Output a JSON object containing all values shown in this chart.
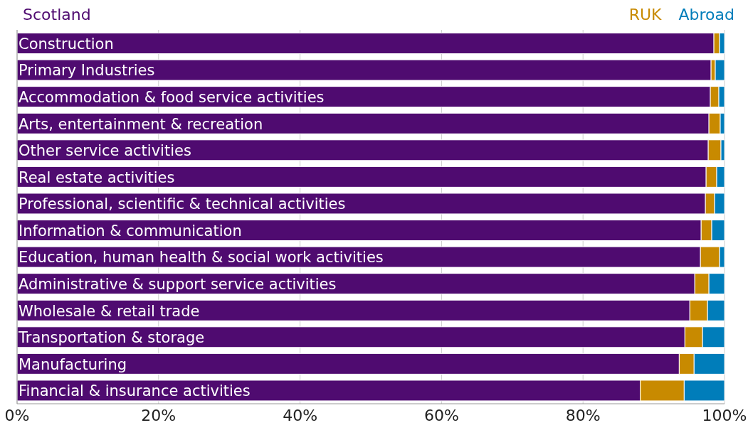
{
  "chart_data": {
    "type": "bar",
    "orientation": "horizontal",
    "stacked": true,
    "categories": [
      "Construction",
      "Primary Industries",
      "Accommodation & food service activities",
      "Arts, entertainment & recreation",
      "Other service activities",
      "Real estate activities",
      "Professional, scientific & technical activities",
      "Information & communication",
      "Education, human health & social work activities",
      "Administrative & support service activities",
      "Wholesale & retail trade",
      "Transportation & storage",
      "Manufacturing",
      "Financial & insurance activities"
    ],
    "series": [
      {
        "name": "Scotland",
        "color": "#4f0b70",
        "values": [
          98.5,
          98.1,
          98.0,
          97.8,
          97.7,
          97.4,
          97.3,
          96.7,
          96.6,
          95.8,
          95.1,
          94.4,
          93.6,
          88.1
        ]
      },
      {
        "name": "RUK",
        "color": "#c88a00",
        "values": [
          0.8,
          0.6,
          1.2,
          1.6,
          1.8,
          1.5,
          1.3,
          1.5,
          2.7,
          2.0,
          2.5,
          2.5,
          2.1,
          6.2
        ]
      },
      {
        "name": "Abroad",
        "color": "#007dba",
        "values": [
          0.7,
          1.3,
          0.8,
          0.6,
          0.5,
          1.1,
          1.4,
          1.8,
          0.7,
          2.2,
          2.4,
          3.1,
          4.3,
          5.7
        ]
      }
    ],
    "xlim": [
      0,
      100
    ],
    "xticks": [
      {
        "value": 0,
        "label": "0%"
      },
      {
        "value": 20,
        "label": "20%"
      },
      {
        "value": 40,
        "label": "40%"
      },
      {
        "value": 60,
        "label": "60%"
      },
      {
        "value": 80,
        "label": "80%"
      },
      {
        "value": 100,
        "label": "100%"
      }
    ],
    "grid": "x",
    "legend": "top"
  }
}
